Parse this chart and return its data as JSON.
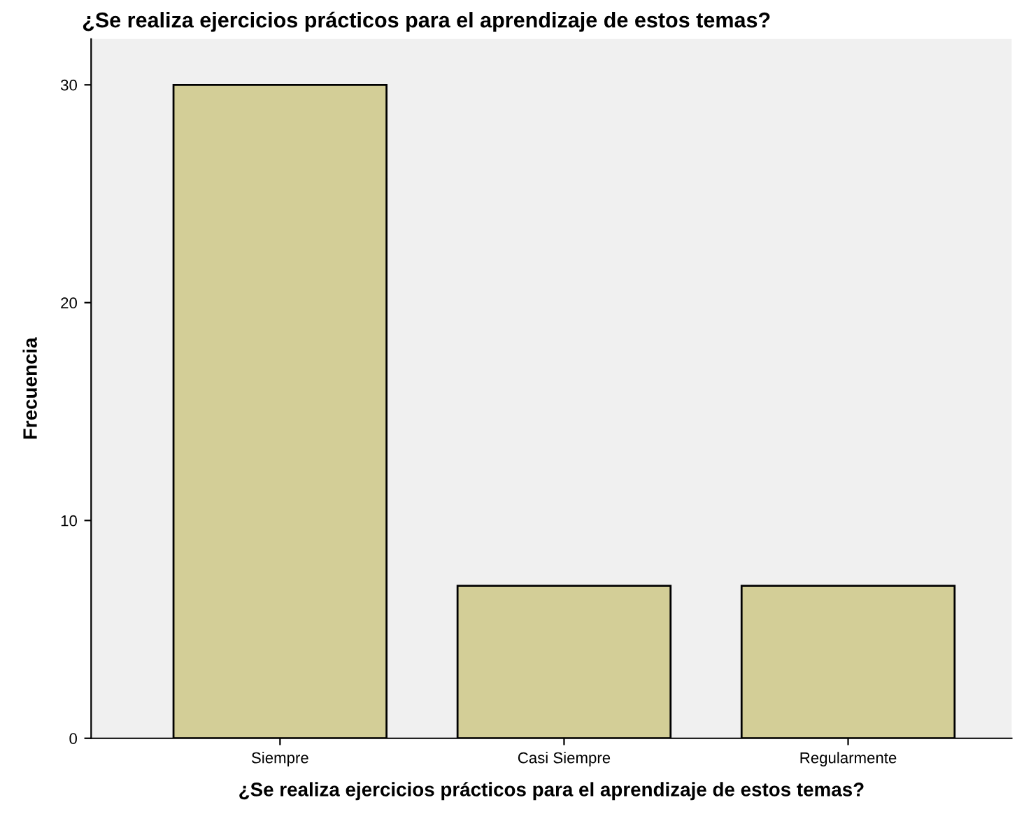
{
  "chart_data": {
    "type": "bar",
    "title": "¿Se realiza ejercicios prácticos para el aprendizaje de estos temas?",
    "xlabel": "¿Se realiza ejercicios prácticos para el aprendizaje de estos temas?",
    "ylabel": "Frecuencia",
    "categories": [
      "Siempre",
      "Casi Siempre",
      "Regularmente"
    ],
    "values": [
      30,
      7,
      7
    ],
    "color": "#d3ce97",
    "ylim": [
      0,
      32.1
    ],
    "yticks": [
      0,
      10,
      20,
      30
    ],
    "grid": false,
    "legend": false
  }
}
